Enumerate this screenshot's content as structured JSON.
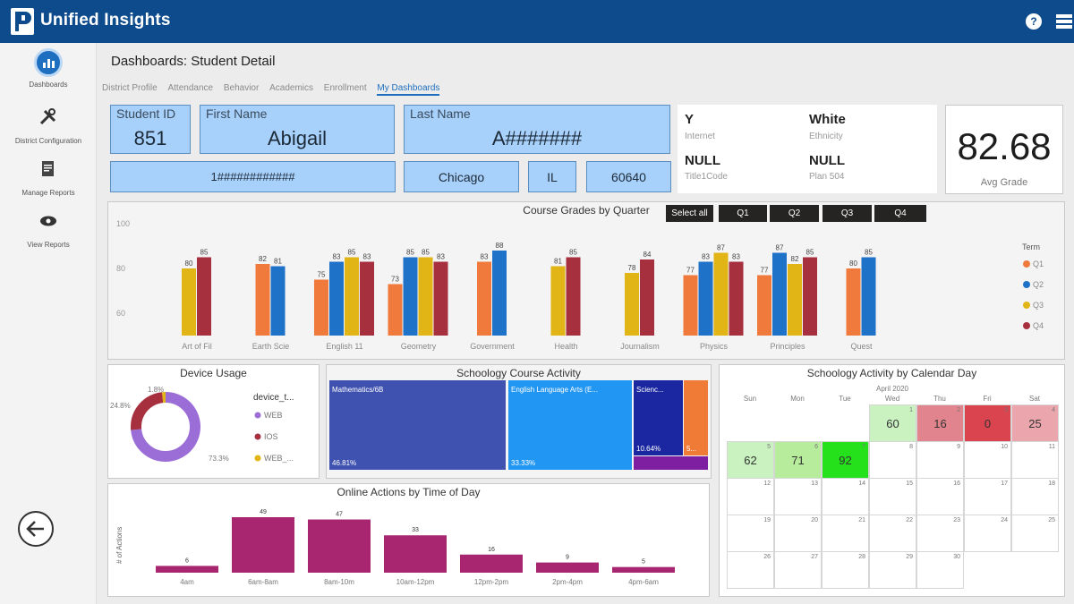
{
  "app": {
    "title": "Unified Insights"
  },
  "header": {
    "title": "Dashboards: Student Detail",
    "tabs": [
      "District Profile",
      "Attendance",
      "Behavior",
      "Academics",
      "Enrollment",
      "My Dashboards"
    ],
    "active_tab": "My Dashboards"
  },
  "sidebar": {
    "items": [
      {
        "label": "Dashboards",
        "icon": "dashboard-icon"
      },
      {
        "label": "District Configuration",
        "icon": "tools-icon"
      },
      {
        "label": "Manage Reports",
        "icon": "report-icon"
      },
      {
        "label": "View Reports",
        "icon": "eye-icon"
      }
    ]
  },
  "student": {
    "id_label": "Student ID",
    "id": "851",
    "first_label": "First Name",
    "first": "Abigail",
    "last_label": "Last Name",
    "last": "A#######",
    "address": "1############",
    "city": "Chicago",
    "state": "IL",
    "zip": "60640"
  },
  "facts": {
    "internet_val": "Y",
    "internet_label": "Internet",
    "ethnicity_val": "White",
    "ethnicity_label": "Ethnicity",
    "title1_val": "NULL",
    "title1_label": "Title1Code",
    "plan_val": "NULL",
    "plan_label": "Plan 504"
  },
  "avg": {
    "value": "82.68",
    "label": "Avg Grade"
  },
  "quarter_buttons": [
    "Select all",
    "Q1",
    "Q2",
    "Q3",
    "Q4"
  ],
  "colors": {
    "Q1": "#ef7a3c",
    "Q2": "#1e72c8",
    "Q3": "#e0b515",
    "Q4": "#a6303e",
    "online": "#a8266f",
    "topbar": "#0e4b8c"
  },
  "chart_data": [
    {
      "type": "bar",
      "title": "Course Grades by Quarter",
      "ylim": [
        50,
        100
      ],
      "yticks": [
        "100",
        "80",
        "60"
      ],
      "legend_title": "Term",
      "series": [
        {
          "name": "Q1",
          "values": [
            null,
            82,
            75,
            73,
            83,
            null,
            null,
            77,
            77,
            80
          ]
        },
        {
          "name": "Q2",
          "values": [
            null,
            81,
            83,
            85,
            88,
            null,
            null,
            83,
            87,
            85
          ]
        },
        {
          "name": "Q3",
          "values": [
            80,
            null,
            85,
            85,
            null,
            81,
            78,
            87,
            82,
            null
          ]
        },
        {
          "name": "Q4",
          "values": [
            85,
            null,
            83,
            83,
            null,
            85,
            84,
            83,
            85,
            null
          ]
        }
      ],
      "categories": [
        "Art of Fil",
        "Earth Scie",
        "English 11",
        "Geometry",
        "Government",
        "Health",
        "Journalism",
        "Physics",
        "Principles",
        "Quest"
      ]
    },
    {
      "type": "pie",
      "title": "Device Usage",
      "legend_title": "device_t...",
      "labels": [
        "WEB",
        "IOS",
        "WEB_..."
      ],
      "values": [
        73.3,
        24.8,
        1.8
      ],
      "value_labels": [
        "73.3%",
        "24.8%",
        "1.8%"
      ],
      "colors": [
        "#9b6dd6",
        "#a6303e",
        "#e0b515"
      ]
    },
    {
      "type": "bar",
      "title": "Online Actions by Time of Day",
      "ylabel": "# of Actions",
      "categories": [
        "4am",
        "6am-8am",
        "8am-10m",
        "10am-12pm",
        "12pm-2pm",
        "2pm-4pm",
        "4pm-6am"
      ],
      "values": [
        6,
        49,
        47,
        33,
        16,
        9,
        5
      ]
    }
  ],
  "treemap": {
    "title": "Schoology Course Activity",
    "items": [
      {
        "name": "Mathematics/6B",
        "pct": "46.81%",
        "color": "#4052b0"
      },
      {
        "name": "English Language Arts (E...",
        "pct": "33.33%",
        "color": "#2196f3"
      },
      {
        "name": "Scienc...",
        "pct": "10.64%",
        "color": "#1a27a0"
      },
      {
        "name": "",
        "pct": "5...",
        "color": "#f07b36"
      },
      {
        "name": "",
        "pct": "",
        "color": "#7d1fa0"
      }
    ]
  },
  "calendar": {
    "title": "Schoology Activity by Calendar Day",
    "month": "April 2020",
    "weekdays": [
      "Sun",
      "Mon",
      "Tue",
      "Wed",
      "Thu",
      "Fri",
      "Sat"
    ],
    "cells": [
      {
        "day": "1",
        "value": "60",
        "color": "#c9f2c0"
      },
      {
        "day": "2",
        "value": "16",
        "color": "#e2848d"
      },
      {
        "day": "3",
        "value": "0",
        "color": "#d9444f"
      },
      {
        "day": "4",
        "value": "25",
        "color": "#eba6ad"
      },
      {
        "day": "5",
        "value": "62",
        "color": "#c9f2c0"
      },
      {
        "day": "6",
        "value": "71",
        "color": "#b6ec9c"
      },
      {
        "day": "7",
        "value": "92",
        "color": "#25e11b"
      },
      {
        "day": "8",
        "value": "",
        "color": "#ffffff"
      },
      {
        "day": "9",
        "value": "",
        "color": "#ffffff"
      },
      {
        "day": "10",
        "value": "",
        "color": "#ffffff"
      },
      {
        "day": "11",
        "value": "",
        "color": "#ffffff"
      },
      {
        "day": "12",
        "value": "",
        "color": "#ffffff"
      },
      {
        "day": "13",
        "value": "",
        "color": "#ffffff"
      },
      {
        "day": "14",
        "value": "",
        "color": "#ffffff"
      },
      {
        "day": "15",
        "value": "",
        "color": "#ffffff"
      },
      {
        "day": "16",
        "value": "",
        "color": "#ffffff"
      },
      {
        "day": "17",
        "value": "",
        "color": "#ffffff"
      },
      {
        "day": "18",
        "value": "",
        "color": "#ffffff"
      },
      {
        "day": "19",
        "value": "",
        "color": "#ffffff"
      },
      {
        "day": "20",
        "value": "",
        "color": "#ffffff"
      },
      {
        "day": "21",
        "value": "",
        "color": "#ffffff"
      },
      {
        "day": "22",
        "value": "",
        "color": "#ffffff"
      },
      {
        "day": "23",
        "value": "",
        "color": "#ffffff"
      },
      {
        "day": "24",
        "value": "",
        "color": "#ffffff"
      },
      {
        "day": "25",
        "value": "",
        "color": "#ffffff"
      },
      {
        "day": "26",
        "value": "",
        "color": "#ffffff"
      },
      {
        "day": "27",
        "value": "",
        "color": "#ffffff"
      },
      {
        "day": "28",
        "value": "",
        "color": "#ffffff"
      },
      {
        "day": "29",
        "value": "",
        "color": "#ffffff"
      },
      {
        "day": "30",
        "value": "",
        "color": "#ffffff"
      }
    ]
  }
}
